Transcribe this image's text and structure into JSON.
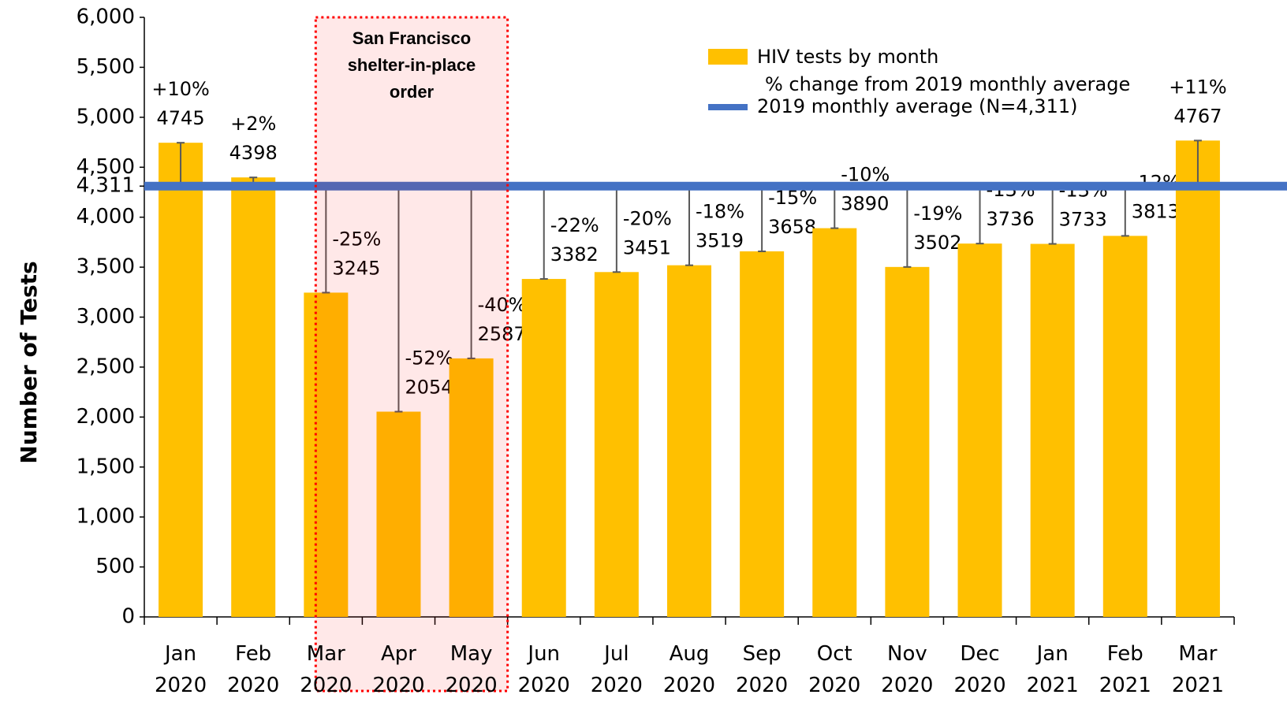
{
  "chart_data": {
    "type": "bar",
    "y_label": "Number of Tests",
    "categories": [
      "Jan 2020",
      "Feb 2020",
      "Mar 2020",
      "Apr 2020",
      "May 2020",
      "Jun 2020",
      "Jul 2020",
      "Aug 2020",
      "Sep 2020",
      "Oct 2020",
      "Nov 2020",
      "Dec 2020",
      "Jan 2021",
      "Feb 2021",
      "Mar 2021"
    ],
    "series": [
      {
        "name": "HIV tests by month",
        "color": "#FFC000",
        "values": [
          4745,
          4398,
          3245,
          2054,
          2587,
          3382,
          3451,
          3519,
          3658,
          3890,
          3502,
          3736,
          3733,
          3813,
          4767
        ]
      }
    ],
    "change_name": "% change from 2019 monthly average",
    "change_labels": [
      "+10%",
      "+2%",
      "-25%",
      "-52%",
      "-40%",
      "-22%",
      "-20%",
      "-18%",
      "-15%",
      "-10%",
      "-19%",
      "-13%",
      "-13%",
      "-12%",
      "+11%"
    ],
    "reference": {
      "name": "2019 monthly average (N=4,311)",
      "value": 4311,
      "color": "#4472C4"
    },
    "annotation": {
      "text": [
        "San Francisco",
        "shelter-in-place",
        "order"
      ],
      "from": "Mar 2020",
      "to": "May 2020",
      "color": "#FF0000"
    },
    "ylim": [
      0,
      6000
    ],
    "yticks": [
      0,
      500,
      {
        "value": 1000,
        "label": "1,000"
      },
      {
        "value": 1500,
        "label": "1,500"
      },
      {
        "value": 2000,
        "label": "2,000"
      },
      {
        "value": 2500,
        "label": "2,500"
      },
      {
        "value": 3000,
        "label": "3,000"
      },
      {
        "value": 3500,
        "label": "3,500"
      },
      {
        "value": 4000,
        "label": "4,000"
      },
      {
        "value": 4311,
        "label": "4,311"
      },
      {
        "value": 4500,
        "label": "4,500"
      },
      {
        "value": 5000,
        "label": "5,000"
      },
      {
        "value": 5500,
        "label": "5,500"
      },
      {
        "value": 6000,
        "label": "6,000"
      }
    ],
    "grid": false,
    "legend": "top-right"
  }
}
